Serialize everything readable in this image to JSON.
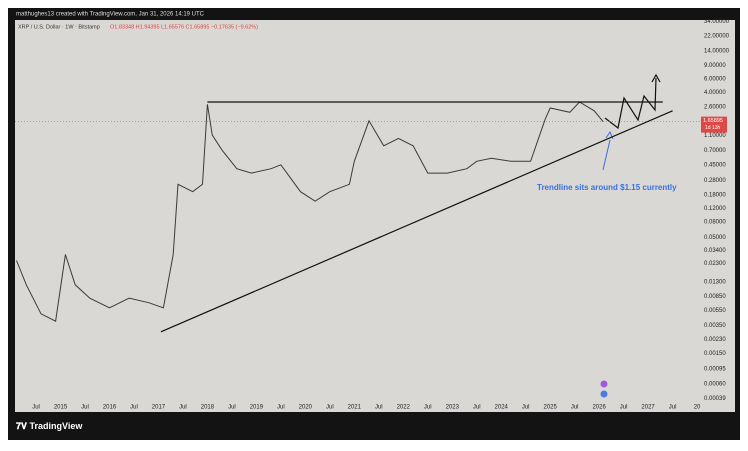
{
  "chart_data": {
    "type": "line",
    "credit": "matthughes13 created with TradingView.com, Jan 31, 2026 14:19 UTC",
    "title": "XRP / U.S. Dollar · 1W · Bitstamp",
    "ohlc": "O1.83348 H1.94395 L1.65576 C1.65895 −0.17635 (−9.62%)",
    "price_label": {
      "value": 1.65895,
      "label": "1.65895"
    },
    "countdown": "1d 13h",
    "annotation": "Trendline sits around $1.15 currently",
    "brand": "TradingView",
    "log_scale": true,
    "series": [
      {
        "name": "XRP",
        "color": "#3a3a3a",
        "x": [
          2014.1,
          2014.3,
          2014.6,
          2014.9,
          2015.1,
          2015.3,
          2015.6,
          2016.0,
          2016.4,
          2016.8,
          2017.1,
          2017.3,
          2017.4,
          2017.7,
          2017.9,
          2018.0,
          2018.1,
          2018.3,
          2018.6,
          2018.9,
          2019.3,
          2019.5,
          2019.9,
          2020.2,
          2020.5,
          2020.9,
          2021.0,
          2021.3,
          2021.6,
          2021.9,
          2022.2,
          2022.5,
          2022.9,
          2023.3,
          2023.5,
          2023.8,
          2024.2,
          2024.6,
          2024.9,
          2025.0,
          2025.4,
          2025.6,
          2025.9,
          2026.08
        ],
        "values": [
          0.025,
          0.012,
          0.005,
          0.004,
          0.03,
          0.012,
          0.008,
          0.006,
          0.008,
          0.007,
          0.006,
          0.03,
          0.25,
          0.2,
          0.25,
          2.8,
          1.1,
          0.7,
          0.4,
          0.35,
          0.4,
          0.45,
          0.2,
          0.15,
          0.2,
          0.25,
          0.5,
          1.7,
          0.8,
          1.0,
          0.8,
          0.35,
          0.35,
          0.4,
          0.5,
          0.55,
          0.5,
          0.5,
          1.8,
          2.5,
          2.2,
          3.0,
          2.3,
          1.66
        ]
      }
    ],
    "trendlines": [
      {
        "x": [
          2018.0,
          2027.3
        ],
        "values": [
          3.0,
          3.0
        ]
      },
      {
        "x": [
          2017.05,
          2027.5
        ],
        "values": [
          0.0029,
          2.3
        ]
      }
    ],
    "xlim": [
      2014.07,
      2028.06
    ],
    "ylim": [
      0.00037,
      35.7
    ],
    "xticks": [
      {
        "value": 2014.5,
        "label": "Jul"
      },
      2015,
      {
        "value": 2015.5,
        "label": "Jul"
      },
      2016,
      {
        "value": 2016.5,
        "label": "Jul"
      },
      2017,
      {
        "value": 2017.5,
        "label": "Jul"
      },
      2018,
      {
        "value": 2018.5,
        "label": "Jul"
      },
      2019,
      {
        "value": 2019.5,
        "label": "Jul"
      },
      2020,
      {
        "value": 2020.5,
        "label": "Jul"
      },
      2021,
      {
        "value": 2021.5,
        "label": "Jul"
      },
      2022,
      {
        "value": 2022.5,
        "label": "Jul"
      },
      2023,
      {
        "value": 2023.5,
        "label": "Jul"
      },
      2024,
      {
        "value": 2024.5,
        "label": "Jul"
      },
      2025,
      {
        "value": 2025.5,
        "label": "Jul"
      },
      2026,
      {
        "value": 2026.5,
        "label": "Jul"
      },
      2027,
      {
        "value": 2027.5,
        "label": "Jul"
      },
      {
        "value": 2028,
        "label": "20"
      }
    ],
    "yticks": [
      {
        "value": 34,
        "label": "34.00000"
      },
      {
        "value": 22,
        "label": "22.00000"
      },
      {
        "value": 14,
        "label": "14.00000"
      },
      {
        "value": 9,
        "label": "9.00000"
      },
      {
        "value": 6,
        "label": "6.00000"
      },
      {
        "value": 4,
        "label": "4.00000"
      },
      {
        "value": 2.6,
        "label": "2.60000"
      },
      {
        "value": 1.1,
        "label": "1.10000"
      },
      {
        "value": 0.7,
        "label": "0.70000"
      },
      {
        "value": 0.45,
        "label": "0.45000"
      },
      {
        "value": 0.28,
        "label": "0.28000"
      },
      {
        "value": 0.18,
        "label": "0.18000"
      },
      {
        "value": 0.12,
        "label": "0.12000"
      },
      {
        "value": 0.08,
        "label": "0.08000"
      },
      {
        "value": 0.05,
        "label": "0.05000"
      },
      {
        "value": 0.034,
        "label": "0.03400"
      },
      {
        "value": 0.023,
        "label": "0.02300"
      },
      {
        "value": 0.013,
        "label": "0.01300"
      },
      {
        "value": 0.0085,
        "label": "0.00850"
      },
      {
        "value": 0.0055,
        "label": "0.00550"
      },
      {
        "value": 0.0035,
        "label": "0.00350"
      },
      {
        "value": 0.0023,
        "label": "0.00230"
      },
      {
        "value": 0.0015,
        "label": "0.00150"
      },
      {
        "value": 0.00095,
        "label": "0.00095"
      },
      {
        "value": 0.0006,
        "label": "0.00060"
      },
      {
        "value": 0.00039,
        "label": "0.00039"
      }
    ]
  }
}
